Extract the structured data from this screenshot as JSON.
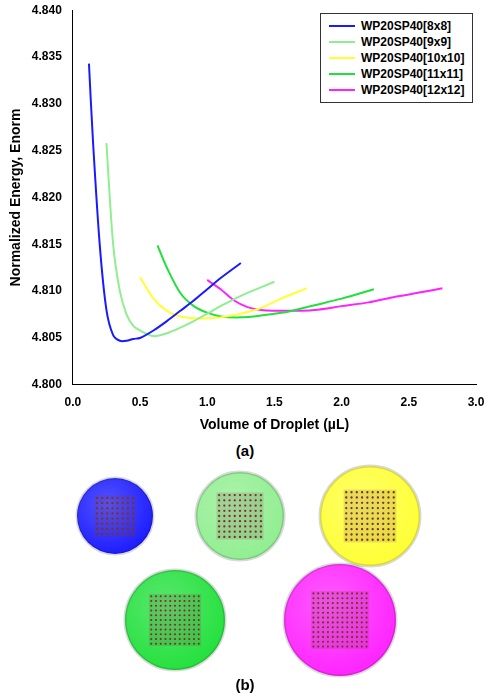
{
  "chart_data": {
    "type": "line",
    "panel_label": "(a)",
    "xlabel": "Volume of Droplet (µL)",
    "ylabel": "Normalized Energy, Enorm",
    "xlim": [
      0,
      3
    ],
    "xticks": [
      {
        "value": 0,
        "label": "0.0"
      },
      0.5,
      {
        "value": 1,
        "label": "1.0"
      },
      1.5,
      {
        "value": 2,
        "label": "2.0"
      },
      2.5,
      {
        "value": 3,
        "label": "3.0"
      }
    ],
    "ylim": [
      4.8,
      4.84
    ],
    "yticks": [
      {
        "value": 4.8,
        "label": "4.800"
      },
      4.805,
      {
        "value": 4.81,
        "label": "4.810"
      },
      4.815,
      {
        "value": 4.82,
        "label": "4.820"
      },
      4.825,
      {
        "value": 4.83,
        "label": "4.830"
      },
      4.835,
      {
        "value": 4.84,
        "label": "4.840"
      }
    ],
    "grid": false,
    "legend": "upper right",
    "series": [
      {
        "name": "WP20SP40[8x8]",
        "color": "#1a1aff",
        "x": [
          0.12,
          0.15,
          0.2,
          0.25,
          0.3,
          0.35,
          0.4,
          0.45,
          0.5,
          0.6,
          0.7,
          0.8,
          0.9,
          1.0,
          1.1,
          1.25
        ],
        "values": [
          4.8343,
          4.826,
          4.815,
          4.808,
          4.8053,
          4.8047,
          4.8047,
          4.8049,
          4.805,
          4.8058,
          4.8068,
          4.8079,
          4.809,
          4.8102,
          4.8114,
          4.813
        ]
      },
      {
        "name": "WP20SP40[9x9]",
        "color": "#90ee90",
        "x": [
          0.25,
          0.3,
          0.35,
          0.4,
          0.45,
          0.5,
          0.6,
          0.7,
          0.8,
          0.9,
          1.0,
          1.1,
          1.25,
          1.5
        ],
        "values": [
          4.8258,
          4.815,
          4.81,
          4.8075,
          4.8063,
          4.8058,
          4.8052,
          4.8055,
          4.8061,
          4.8068,
          4.8076,
          4.8084,
          4.8095,
          4.811
        ]
      },
      {
        "name": "WP20SP40[10x10]",
        "color": "#ffff33",
        "x": [
          0.5,
          0.6,
          0.7,
          0.8,
          0.9,
          1.0,
          1.1,
          1.25,
          1.4,
          1.55,
          1.74
        ],
        "values": [
          4.8115,
          4.8092,
          4.8079,
          4.8073,
          4.8071,
          4.8071,
          4.8072,
          4.8076,
          4.8082,
          4.8092,
          4.8103
        ]
      },
      {
        "name": "WP20SP40[11x11]",
        "color": "#22e03c",
        "x": [
          0.63,
          0.7,
          0.8,
          0.9,
          1.0,
          1.1,
          1.25,
          1.4,
          1.6,
          1.8,
          2.0,
          2.24
        ],
        "values": [
          4.8149,
          4.8125,
          4.8098,
          4.8084,
          4.8077,
          4.8073,
          4.8072,
          4.8074,
          4.8078,
          4.8085,
          4.8092,
          4.8102
        ]
      },
      {
        "name": "WP20SP40[12x12]",
        "color": "#ff22ff",
        "x": [
          1.0,
          1.1,
          1.2,
          1.3,
          1.4,
          1.6,
          1.8,
          2.0,
          2.2,
          2.4,
          2.6,
          2.75
        ],
        "values": [
          4.8112,
          4.8102,
          4.809,
          4.8083,
          4.808,
          4.8079,
          4.808,
          4.8084,
          4.8088,
          4.8094,
          4.8099,
          4.8103
        ]
      }
    ]
  },
  "panel_b": {
    "panel_label": "(b)",
    "droplets": [
      {
        "color": "#1a1aff",
        "grid": 8
      },
      {
        "color": "#90ee90",
        "grid": 9
      },
      {
        "color": "#ffff33",
        "grid": 10
      },
      {
        "color": "#22e03c",
        "grid": 11
      },
      {
        "color": "#ff22ff",
        "grid": 12
      }
    ]
  }
}
